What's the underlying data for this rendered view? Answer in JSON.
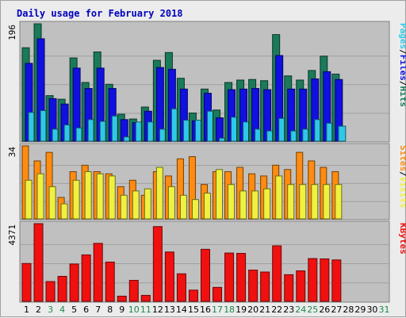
{
  "chart_data": [
    {
      "type": "bar",
      "title": "Daily usage for February 2018",
      "categories": [
        "1",
        "2",
        "3",
        "4",
        "5",
        "6",
        "7",
        "8",
        "9",
        "10",
        "11",
        "12",
        "13",
        "14",
        "15",
        "16",
        "17",
        "18",
        "19",
        "20",
        "21",
        "22",
        "23",
        "24",
        "25",
        "26",
        "27",
        "28",
        "29",
        "30",
        "31"
      ],
      "weekend_days": [
        "3",
        "4",
        "10",
        "11",
        "17",
        "18",
        "24",
        "25",
        "31"
      ],
      "ymax_label": "196",
      "ymax": 196,
      "series": [
        {
          "name": "Hits",
          "color": "#1a7a5a",
          "values": [
            156,
            196,
            76,
            70,
            139,
            98,
            149,
            95,
            45,
            37,
            57,
            135,
            148,
            105,
            47,
            87,
            52,
            98,
            102,
            103,
            101,
            178,
            109,
            102,
            118,
            142,
            112,
            null,
            null,
            null,
            null
          ]
        },
        {
          "name": "Files",
          "color": "#1010e0",
          "values": [
            130,
            171,
            71,
            62,
            122,
            88,
            122,
            88,
            36,
            31,
            50,
            123,
            120,
            87,
            34,
            80,
            39,
            86,
            87,
            88,
            86,
            143,
            87,
            87,
            104,
            116,
            103,
            null,
            null,
            null,
            null
          ]
        },
        {
          "name": "Pages",
          "color": "#30c8e8",
          "values": [
            48,
            51,
            20,
            27,
            22,
            36,
            33,
            42,
            7,
            32,
            32,
            20,
            54,
            35,
            35,
            50,
            5,
            40,
            32,
            20,
            17,
            38,
            17,
            20,
            36,
            30,
            25,
            null,
            null,
            null,
            null
          ]
        }
      ],
      "y_axis_legend": [
        "Pages",
        "/",
        "Files",
        "/",
        "Hits"
      ]
    },
    {
      "type": "bar",
      "ymax_label": "34",
      "ymax": 34,
      "series": [
        {
          "name": "Sites",
          "color": "#ff8c10",
          "values": [
            34,
            27,
            31,
            10,
            22,
            25,
            22,
            21,
            15,
            18,
            11,
            22,
            20,
            28,
            29,
            16,
            22,
            22,
            24,
            21,
            20,
            25,
            23,
            31,
            27,
            24,
            22,
            null,
            null,
            null,
            null
          ]
        },
        {
          "name": "Visits",
          "color": "#f0f040",
          "values": [
            18,
            21,
            15,
            7,
            18,
            22,
            21,
            20,
            11,
            13,
            14,
            24,
            15,
            11,
            9,
            12,
            23,
            16,
            13,
            13,
            14,
            20,
            16,
            16,
            16,
            16,
            16,
            null,
            null,
            null,
            null
          ]
        }
      ],
      "y_axis_legend": [
        "Sites",
        "/",
        "Visits"
      ]
    },
    {
      "type": "bar",
      "ymax_label": "4371",
      "ymax": 4371,
      "series": [
        {
          "name": "KBytes",
          "color": "#f01010",
          "values": [
            2130,
            4371,
            1115,
            1407,
            2100,
            2614,
            3261,
            2208,
            292,
            1182,
            338,
            4206,
            2776,
            1550,
            632,
            2927,
            786,
            2717,
            2697,
            1758,
            1650,
            3123,
            1500,
            1716,
            2406,
            2389,
            2330,
            null,
            null,
            null,
            null
          ]
        }
      ],
      "y_axis_legend": [
        "KBytes"
      ]
    }
  ]
}
